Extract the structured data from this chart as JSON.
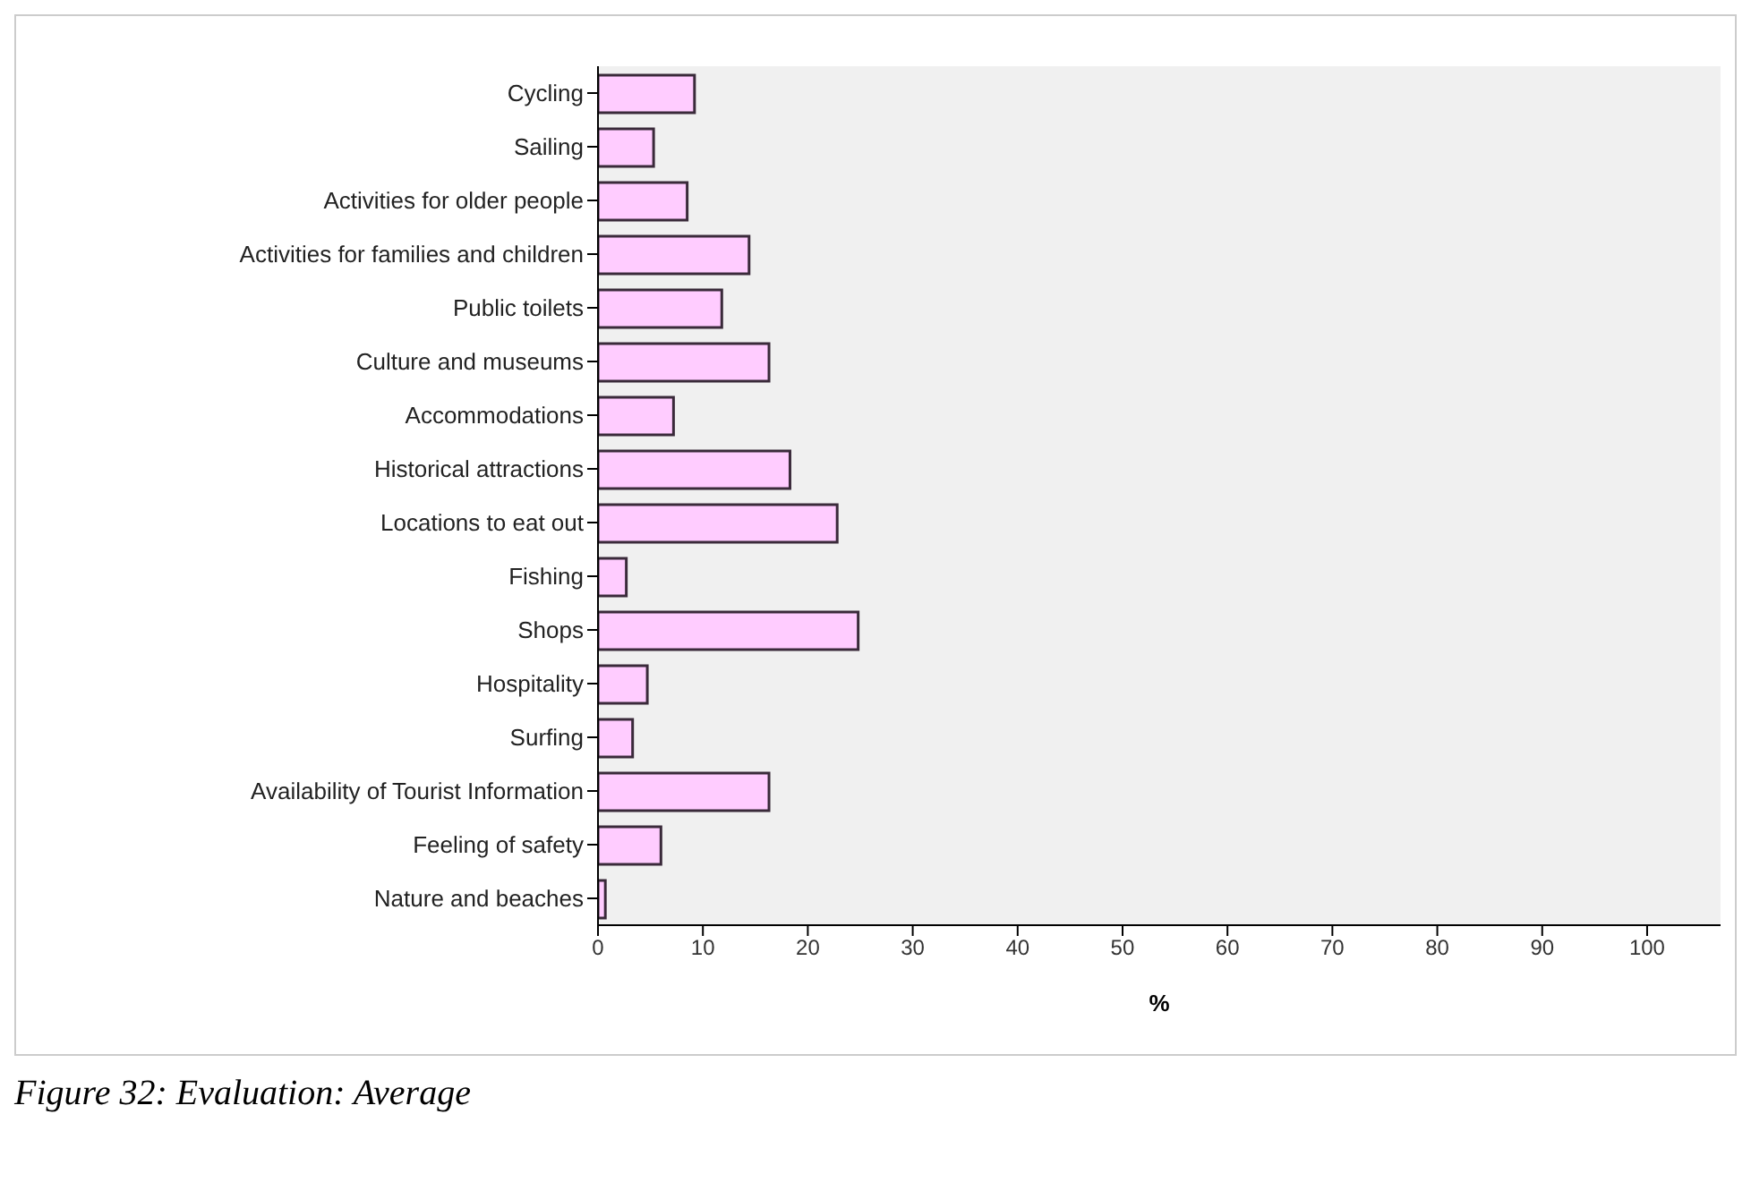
{
  "chart_data": {
    "type": "bar",
    "orientation": "horizontal",
    "xlabel": "%",
    "categories": [
      "Cycling",
      "Sailing",
      "Activities for older people",
      "Activities for families and children",
      "Public toilets",
      "Culture and museums",
      "Accommodations",
      "Historical attractions",
      "Locations to eat out",
      "Fishing",
      "Shops",
      "Hospitality",
      "Surfing",
      "Availability of Tourist Information",
      "Feeling of safety",
      "Nature and beaches"
    ],
    "values": [
      9.2,
      5.3,
      8.5,
      14.4,
      11.8,
      16.3,
      7.2,
      18.3,
      22.8,
      2.7,
      24.8,
      4.7,
      3.3,
      16.3,
      6.0,
      0.7
    ],
    "color": "#ffccff",
    "xlim": [
      0,
      107
    ],
    "xticks": [
      0,
      10,
      20,
      30,
      40,
      50,
      60,
      70,
      80,
      90,
      100
    ],
    "grid": false,
    "annotations": [
      "Figure 32: Evaluation: Average"
    ]
  }
}
